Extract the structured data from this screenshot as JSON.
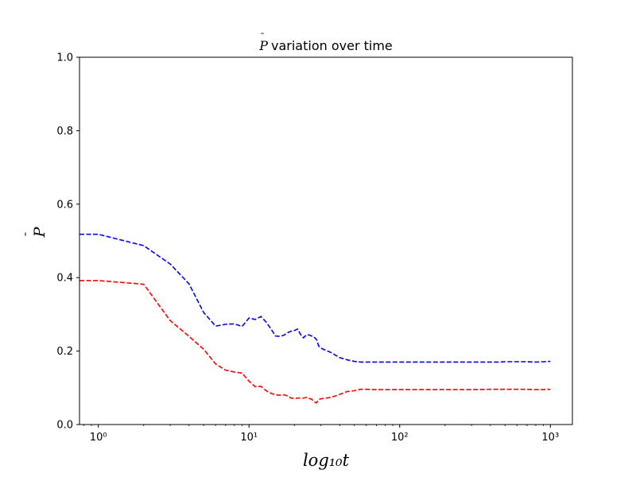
{
  "chart_data": {
    "type": "line",
    "title": "variation over time",
    "title_symbol": "P",
    "xlabel": "log₁₀t",
    "ylabel": "P",
    "xscale": "log",
    "xlim": [
      0.75,
      1400
    ],
    "ylim": [
      0,
      1
    ],
    "grid": false,
    "x_ticks": [
      1,
      10,
      100,
      1000
    ],
    "x_tick_labels": [
      "10⁰",
      "10¹",
      "10²",
      "10³"
    ],
    "y_ticks": [
      0,
      0.2,
      0.4,
      0.6,
      0.8,
      1.0
    ],
    "y_tick_labels": [
      "0.0",
      "0.2",
      "0.4",
      "0.6",
      "0.8",
      "1.0"
    ],
    "series": [
      {
        "color": "#0000ff",
        "linestyle": "dashed",
        "x": [
          0.75,
          1,
          2,
          3,
          4,
          5,
          6,
          7,
          8,
          9,
          10,
          11,
          12,
          13,
          14,
          15,
          16,
          17,
          18,
          19,
          20,
          21,
          22,
          23,
          24,
          25,
          26,
          27,
          28,
          29,
          30,
          35,
          40,
          45,
          50,
          55,
          60,
          70,
          80,
          100,
          150,
          200,
          300,
          400,
          450,
          500,
          600,
          700,
          800,
          900,
          1000
        ],
        "values": [
          0.518,
          0.518,
          0.487,
          0.437,
          0.383,
          0.305,
          0.268,
          0.273,
          0.274,
          0.267,
          0.29,
          0.286,
          0.294,
          0.279,
          0.26,
          0.241,
          0.24,
          0.243,
          0.25,
          0.254,
          0.256,
          0.26,
          0.245,
          0.236,
          0.244,
          0.244,
          0.241,
          0.238,
          0.232,
          0.214,
          0.208,
          0.196,
          0.182,
          0.176,
          0.172,
          0.17,
          0.17,
          0.17,
          0.17,
          0.17,
          0.17,
          0.17,
          0.17,
          0.17,
          0.17,
          0.171,
          0.171,
          0.171,
          0.17,
          0.171,
          0.172
        ]
      },
      {
        "color": "#ff0000",
        "linestyle": "dashed",
        "x": [
          0.75,
          1,
          2,
          3,
          4,
          5,
          6,
          7,
          8,
          9,
          10,
          11,
          12,
          13,
          14,
          15,
          16,
          17,
          18,
          19,
          20,
          21,
          22,
          23,
          24,
          25,
          26,
          27,
          28,
          29,
          30,
          35,
          40,
          45,
          50,
          55,
          60,
          70,
          80,
          100,
          150,
          200,
          300,
          400,
          500,
          600,
          700,
          800,
          900,
          1000
        ],
        "values": [
          0.392,
          0.392,
          0.382,
          0.283,
          0.24,
          0.205,
          0.165,
          0.148,
          0.143,
          0.14,
          0.118,
          0.103,
          0.104,
          0.092,
          0.085,
          0.081,
          0.08,
          0.081,
          0.078,
          0.072,
          0.071,
          0.072,
          0.072,
          0.072,
          0.074,
          0.071,
          0.069,
          0.062,
          0.059,
          0.068,
          0.07,
          0.074,
          0.082,
          0.09,
          0.092,
          0.096,
          0.096,
          0.095,
          0.095,
          0.095,
          0.095,
          0.095,
          0.095,
          0.096,
          0.096,
          0.096,
          0.096,
          0.095,
          0.095,
          0.096
        ]
      }
    ]
  }
}
